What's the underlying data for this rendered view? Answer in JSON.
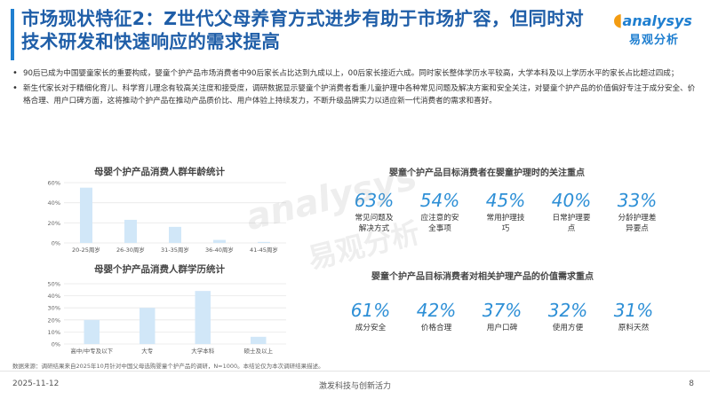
{
  "title": "市场现状特征2：Z世代父母养育方式进步有助于市场扩容，但同时对技术研发和快速响应的需求提高",
  "logo": {
    "brand": "analysys",
    "cn": "易观分析"
  },
  "bullets": [
    "90后已成为中国婴童家长的重要构成，婴童个护产品市场消费者中90后家长占比达到九成以上，00后家长接近六成。同时家长整体学历水平较高，大学本科及以上学历水平的家长占比超过四成；",
    "新生代家长对于精细化育儿、科学育儿理念有较高关注度和接受度，调研数据显示婴童个护消费者看重儿童护理中各种常见问题及解决方案和安全关注，对婴童个护产品的价值偏好专注于成分安全、价格合理、用户口碑方面，这将推动个护产品在推动产品质价比、用户体验上持续发力，不断升级品牌实力以适应新一代消费者的需求和喜好。"
  ],
  "chart_data": [
    {
      "type": "bar",
      "title": "母婴个护产品消费人群年龄统计",
      "categories": [
        "20-25周岁",
        "26-30周岁",
        "31-35周岁",
        "36-40周岁",
        "41-45周岁"
      ],
      "values": [
        55,
        23,
        16,
        3,
        1
      ],
      "ylim": [
        0,
        60
      ],
      "yticks": [
        "0%",
        "20%",
        "40%",
        "60%"
      ],
      "ytick_values": [
        0,
        20,
        40,
        60
      ],
      "color": "#d1e7f8",
      "grid": true
    },
    {
      "type": "bar",
      "title": "母婴个护产品消费人群学历统计",
      "categories": [
        "高中/中专及以下",
        "大专",
        "大学本科",
        "硕士及以上"
      ],
      "values": [
        20,
        30,
        44,
        6
      ],
      "ylim": [
        0,
        50
      ],
      "yticks": [
        "0%",
        "10%",
        "20%",
        "30%",
        "40%",
        "50%"
      ],
      "ytick_values": [
        0,
        10,
        20,
        30,
        40,
        50
      ],
      "color": "#d1e7f8",
      "grid": true
    },
    {
      "type": "table",
      "title": "婴童个护产品目标消费者在婴童护理时的关注重点",
      "items": [
        {
          "value": "63%",
          "label": "常见问题及解决方式"
        },
        {
          "value": "54%",
          "label": "应注意的安全事项"
        },
        {
          "value": "45%",
          "label": "常用护理技巧"
        },
        {
          "value": "40%",
          "label": "日常护理要点"
        },
        {
          "value": "33%",
          "label": "分龄护理差异要点"
        }
      ]
    },
    {
      "type": "table",
      "title": "婴童个护产品目标消费者对相关护理产品的价值需求重点",
      "items": [
        {
          "value": "61%",
          "label": "成分安全"
        },
        {
          "value": "42%",
          "label": "价格合理"
        },
        {
          "value": "37%",
          "label": "用户口碑"
        },
        {
          "value": "32%",
          "label": "使用方便"
        },
        {
          "value": "31%",
          "label": "原料天然"
        }
      ]
    }
  ],
  "source": "数据来源：调研结果来自2025年10月针对中国父母选购婴童个护产品的调研，N=1000。本结论仅为本次调研结果描述。",
  "watermark": {
    "brand": "analysys",
    "cn": "易观分析"
  },
  "footer": {
    "date": "2025-11-12",
    "slogan": "激发科技与创新活力",
    "page": "8"
  }
}
